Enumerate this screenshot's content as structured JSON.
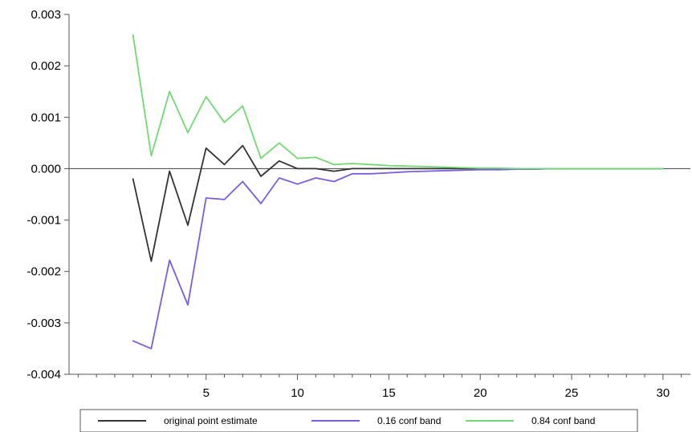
{
  "chart_data": {
    "type": "line",
    "title": "",
    "xlabel": "",
    "ylabel": "",
    "xlim": [
      -2.5,
      31.5
    ],
    "ylim": [
      -0.004,
      0.003
    ],
    "x_ticks": [
      5,
      10,
      15,
      20,
      25,
      30
    ],
    "x_tick_labels": [
      "5",
      "10",
      "15",
      "20",
      "25",
      "30"
    ],
    "y_ticks": [
      0.003,
      0.002,
      0.001,
      0.0,
      -0.001,
      -0.002,
      -0.003,
      -0.004
    ],
    "y_tick_labels": [
      "0.003",
      "0.002",
      "0.001",
      "0.000",
      "-0.001",
      "-0.002",
      "-0.003",
      "-0.004"
    ],
    "grid": false,
    "legend_position": "bottom",
    "x": [
      1,
      2,
      3,
      4,
      5,
      6,
      7,
      8,
      9,
      10,
      11,
      12,
      13,
      14,
      15,
      16,
      17,
      18,
      19,
      20,
      21,
      22,
      23,
      24,
      25,
      26,
      27,
      28,
      29,
      30
    ],
    "series": [
      {
        "name": "original point estimate",
        "color": "#333333",
        "values": [
          -0.0002,
          -0.0018,
          -5e-05,
          -0.0011,
          0.0004,
          8e-05,
          0.00045,
          -0.00015,
          0.00015,
          0.0,
          0.0,
          -5e-05,
          0.0,
          0.0,
          0.0,
          0.0,
          0.0,
          0.0,
          0.0,
          0.0,
          0.0,
          0.0,
          0.0,
          0.0,
          0.0,
          0.0,
          0.0,
          0.0,
          0.0,
          0.0
        ]
      },
      {
        "name": "0.16 conf band",
        "color": "#7b5ce0",
        "values": [
          -0.00335,
          -0.0035,
          -0.00178,
          -0.00265,
          -0.00057,
          -0.0006,
          -0.00025,
          -0.00068,
          -0.00018,
          -0.0003,
          -0.00018,
          -0.00025,
          -0.0001,
          -0.0001,
          -8e-05,
          -6e-05,
          -5e-05,
          -4e-05,
          -3e-05,
          -2e-05,
          -2e-05,
          -1e-05,
          -1e-05,
          0.0,
          0.0,
          0.0,
          0.0,
          0.0,
          0.0,
          0.0
        ]
      },
      {
        "name": "0.84 conf band",
        "color": "#72d872",
        "values": [
          0.0026,
          0.00025,
          0.0015,
          0.0007,
          0.0014,
          0.0009,
          0.00122,
          0.0002,
          0.0005,
          0.0002,
          0.00022,
          8e-05,
          0.0001,
          8e-05,
          6e-05,
          5e-05,
          4e-05,
          3e-05,
          2e-05,
          1e-05,
          1e-05,
          0.0,
          0.0,
          0.0,
          0.0,
          0.0,
          0.0,
          0.0,
          0.0,
          0.0
        ]
      }
    ]
  }
}
